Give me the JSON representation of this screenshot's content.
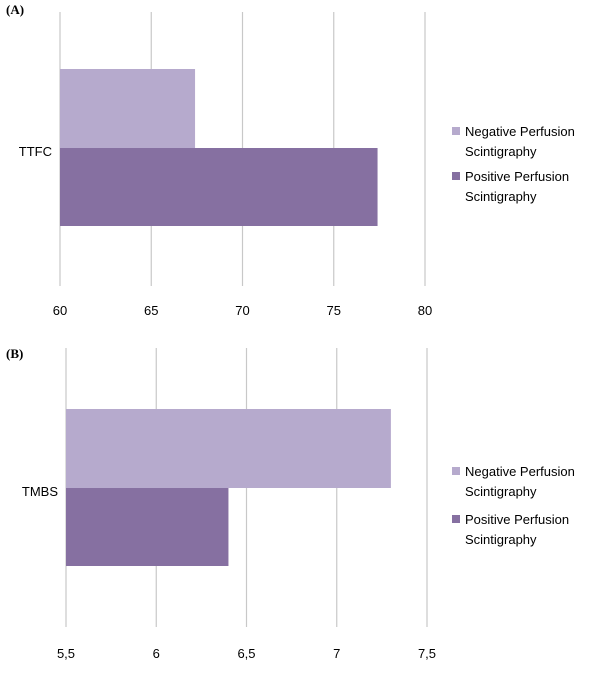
{
  "colors": {
    "negative": "#b6aacd",
    "positive": "#8670a1",
    "grid": "#c8c8c8"
  },
  "chart_data": [
    {
      "type": "bar",
      "orientation": "horizontal",
      "panel_label": "(A)",
      "categories": [
        "TTFC"
      ],
      "series": [
        {
          "name": "Negative Perfusion Scintigraphy",
          "values": [
            67.4
          ]
        },
        {
          "name": "Positive Perfusion Scintigraphy",
          "values": [
            77.4
          ]
        }
      ],
      "xlim": [
        60,
        80
      ],
      "xticks": [
        60,
        65,
        70,
        75,
        80
      ],
      "xtick_labels": [
        "60",
        "65",
        "70",
        "75",
        "80"
      ],
      "grid": true,
      "legend_position": "right",
      "legend": [
        {
          "line1": "Negative Perfusion",
          "line2": "Scintigraphy"
        },
        {
          "line1": "Positive Perfusion",
          "line2": "Scintigraphy"
        }
      ]
    },
    {
      "type": "bar",
      "orientation": "horizontal",
      "panel_label": "(B)",
      "categories": [
        "TMBS"
      ],
      "series": [
        {
          "name": "Negative Perfusion Scintigraphy",
          "values": [
            7.3
          ]
        },
        {
          "name": "Positive Perfusion Scintigraphy",
          "values": [
            6.4
          ]
        }
      ],
      "xlim": [
        5.5,
        7.5
      ],
      "xticks": [
        5.5,
        6,
        6.5,
        7,
        7.5
      ],
      "xtick_labels": [
        "5,5",
        "6",
        "6,5",
        "7",
        "7,5"
      ],
      "grid": true,
      "legend_position": "right",
      "legend": [
        {
          "line1": "Negative Perfusion",
          "line2": "Scintigraphy"
        },
        {
          "line1": "Positive Perfusion",
          "line2": "Scintigraphy"
        }
      ]
    }
  ]
}
